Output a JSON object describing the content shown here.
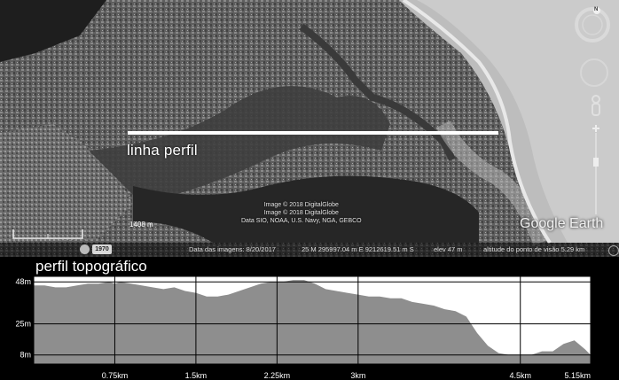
{
  "map": {
    "profile_line_label": "linha perfil",
    "scale_label": "1408 m",
    "credits": [
      "Image © 2018 DigitalGlobe",
      "Image © 2018 DigitalGlobe",
      "Data SIO, NOAA, U.S. Navy, NGA, GEBCO"
    ],
    "historical_year": "1970",
    "logo": "Google Earth",
    "compass_label": "N",
    "status": {
      "imagery_date": "Data das imagens: 8/20/2017",
      "coords": "25 M 295997.04 m E 9212619.51 m S",
      "elevation": "elev   47 m",
      "eye_altitude": "altitude do ponto de visão   5.29 km"
    }
  },
  "chart_data": {
    "type": "area",
    "title": "perfil topográfico",
    "xlabel": "",
    "ylabel": "",
    "x_tick_labels": [
      "0.75km",
      "1.5km",
      "2.25km",
      "3km",
      "4.5km",
      "5.15km"
    ],
    "x_tick_values": [
      0.75,
      1.5,
      2.25,
      3.0,
      4.5,
      5.15
    ],
    "y_tick_labels": [
      "48m",
      "25m",
      "8m"
    ],
    "y_tick_values": [
      48,
      25,
      8
    ],
    "xlim": [
      0,
      5.15
    ],
    "ylim": [
      3,
      51
    ],
    "grid": true,
    "fill_color": "#8e8e8e",
    "series": [
      {
        "x": [
          0.0,
          0.1,
          0.2,
          0.3,
          0.4,
          0.5,
          0.6,
          0.7,
          0.75,
          0.8,
          0.9,
          1.0,
          1.1,
          1.2,
          1.3,
          1.4,
          1.5,
          1.6,
          1.7,
          1.8,
          1.9,
          2.0,
          2.1,
          2.2,
          2.3,
          2.4,
          2.5,
          2.6,
          2.7,
          2.8,
          2.9,
          3.0,
          3.1,
          3.2,
          3.3,
          3.4,
          3.5,
          3.6,
          3.7,
          3.8,
          3.9,
          4.0,
          4.1,
          4.2,
          4.3,
          4.4,
          4.5,
          4.6,
          4.7,
          4.8,
          4.9,
          5.0,
          5.1,
          5.15
        ],
        "y": [
          46,
          46,
          45,
          45,
          46,
          47,
          47,
          48,
          47,
          48,
          47,
          46,
          45,
          44,
          45,
          43,
          42,
          40,
          40,
          41,
          43,
          45,
          47,
          48,
          48,
          49,
          49,
          47,
          44,
          43,
          42,
          41,
          40,
          40,
          39,
          39,
          37,
          36,
          35,
          33,
          32,
          29,
          20,
          13,
          9,
          8,
          8,
          8,
          10,
          10,
          14,
          16,
          11,
          8
        ]
      }
    ]
  }
}
